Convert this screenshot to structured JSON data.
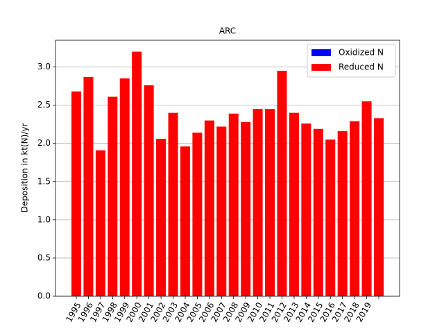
{
  "chart_data": {
    "type": "stacked_bar",
    "title": "ARC",
    "ylabel": "Deposition in kt(N)/yr",
    "categories": [
      "1995",
      "1996",
      "1997",
      "1998",
      "1999",
      "2000",
      "2001",
      "2002",
      "2003",
      "2004",
      "2005",
      "2006",
      "2007",
      "2008",
      "2009",
      "2010",
      "2011",
      "2012",
      "2013",
      "2014",
      "2015",
      "2016",
      "2017",
      "2018",
      "2019",
      null
    ],
    "series": [
      {
        "name": "Oxidized N",
        "color": "#0000ff",
        "values": [
          0,
          0,
          0,
          0,
          0,
          0,
          0,
          0,
          0,
          0,
          0,
          0,
          0,
          0,
          0,
          0,
          0,
          0,
          0,
          0,
          0,
          0,
          0,
          0,
          0,
          0
        ]
      },
      {
        "name": "Reduced N",
        "color": "#ff0000",
        "values": [
          2.68,
          2.87,
          1.91,
          2.61,
          2.85,
          3.2,
          2.76,
          2.06,
          2.4,
          1.96,
          2.14,
          2.3,
          2.22,
          2.39,
          2.28,
          2.45,
          2.45,
          2.95,
          2.4,
          2.26,
          2.19,
          2.05,
          2.16,
          2.29,
          2.55,
          2.33
        ]
      }
    ],
    "ylim": [
      0,
      3.35
    ],
    "yticks": [
      {
        "value": 0,
        "label": "0.0"
      },
      {
        "value": 0.5,
        "label": "0.5"
      },
      {
        "value": 1,
        "label": "1.0"
      },
      {
        "value": 1.5,
        "label": "1.5"
      },
      {
        "value": 2,
        "label": "2.0"
      },
      {
        "value": 2.5,
        "label": "2.5"
      },
      {
        "value": 3,
        "label": "3.0"
      }
    ],
    "grid": true,
    "legend": "upper right"
  }
}
